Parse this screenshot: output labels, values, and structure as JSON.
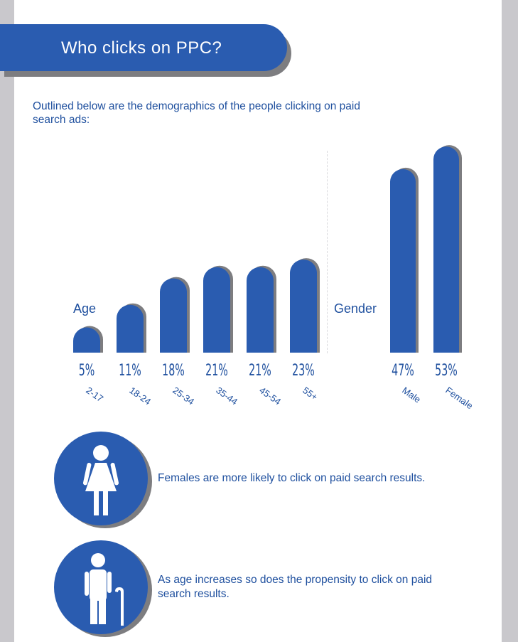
{
  "header": {
    "title": "Who clicks on PPC?"
  },
  "intro": {
    "text": "Outlined below are the demographics of the people clicking on paid search ads:"
  },
  "chart_data": [
    {
      "type": "bar",
      "title": "Age",
      "categories": [
        "2-17",
        "18-24",
        "25-34",
        "35-44",
        "45-54",
        "55+"
      ],
      "values": [
        5,
        11,
        18,
        21,
        21,
        23
      ],
      "value_labels": [
        "5%",
        "11%",
        "18%",
        "21%",
        "21%",
        "23%"
      ],
      "unit": "%"
    },
    {
      "type": "bar",
      "title": "Gender",
      "categories": [
        "Male",
        "Female"
      ],
      "values": [
        47,
        53
      ],
      "value_labels": [
        "47%",
        "53%"
      ],
      "unit": "%"
    }
  ],
  "facts": [
    {
      "icon": "female-person-icon",
      "text": "Females are more likely to click on paid search results."
    },
    {
      "icon": "elderly-person-with-cane-icon",
      "text": "As age increases so does the propensity to click on paid search results."
    }
  ],
  "colors": {
    "bar": "#2a5cb0",
    "bar_shadow": "#7d7d80",
    "text": "#1e4f9e"
  }
}
